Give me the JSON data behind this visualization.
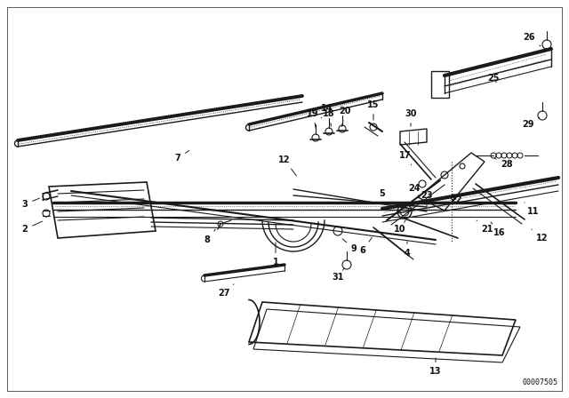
{
  "bg_color": "#ffffff",
  "line_color": "#1a1a1a",
  "text_color": "#111111",
  "diagram_id": "00007505",
  "fig_w": 6.4,
  "fig_h": 4.48,
  "dpi": 100
}
